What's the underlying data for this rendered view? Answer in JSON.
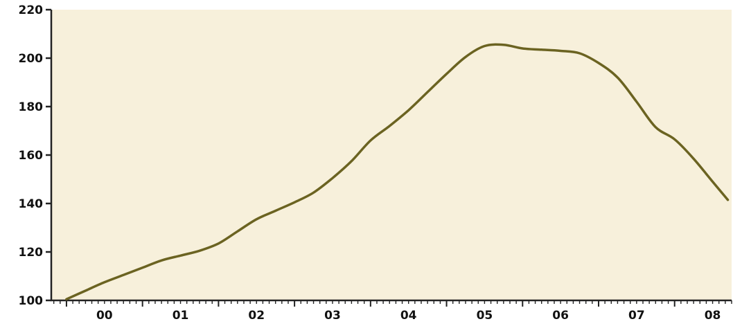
{
  "chart_data": {
    "type": "line",
    "title": "",
    "xlabel": "",
    "ylabel": "",
    "ylim": [
      100,
      220
    ],
    "xlim": [
      1999.8,
      2008.75
    ],
    "yticks": [
      100,
      120,
      140,
      160,
      180,
      200,
      220
    ],
    "xtick_labels": [
      {
        "label": "00",
        "year": 2000.5
      },
      {
        "label": "01",
        "year": 2001.5
      },
      {
        "label": "02",
        "year": 2002.5
      },
      {
        "label": "03",
        "year": 2003.5
      },
      {
        "label": "04",
        "year": 2004.5
      },
      {
        "label": "05",
        "year": 2005.5
      },
      {
        "label": "06",
        "year": 2006.5
      },
      {
        "label": "07",
        "year": 2007.5
      },
      {
        "label": "08",
        "year": 2008.5
      }
    ],
    "grid": false,
    "legend": "none",
    "colors": {
      "background": "#f7f0db",
      "line": "#6b6321",
      "axis": "#222222"
    },
    "series": [
      {
        "x": [
          2000.0,
          2000.25,
          2000.5,
          2000.75,
          2001.0,
          2001.25,
          2001.5,
          2001.75,
          2002.0,
          2002.25,
          2002.5,
          2002.75,
          2003.0,
          2003.25,
          2003.5,
          2003.75,
          2004.0,
          2004.25,
          2004.5,
          2004.75,
          2005.0,
          2005.25,
          2005.5,
          2005.75,
          2006.0,
          2006.25,
          2006.5,
          2006.75,
          2007.0,
          2007.25,
          2007.5,
          2007.75,
          2008.0,
          2008.25,
          2008.5,
          2008.7
        ],
        "y": [
          100.5,
          104,
          107.5,
          110.5,
          113.5,
          116.5,
          118.5,
          120.5,
          123.5,
          128.5,
          133.5,
          137,
          140.5,
          144.5,
          150.5,
          157.5,
          166,
          172,
          178.5,
          186,
          193.5,
          200.5,
          205,
          205.5,
          204,
          203.5,
          203,
          202,
          198,
          192,
          182,
          171.5,
          166.5,
          158.5,
          149,
          141.5
        ]
      }
    ]
  }
}
